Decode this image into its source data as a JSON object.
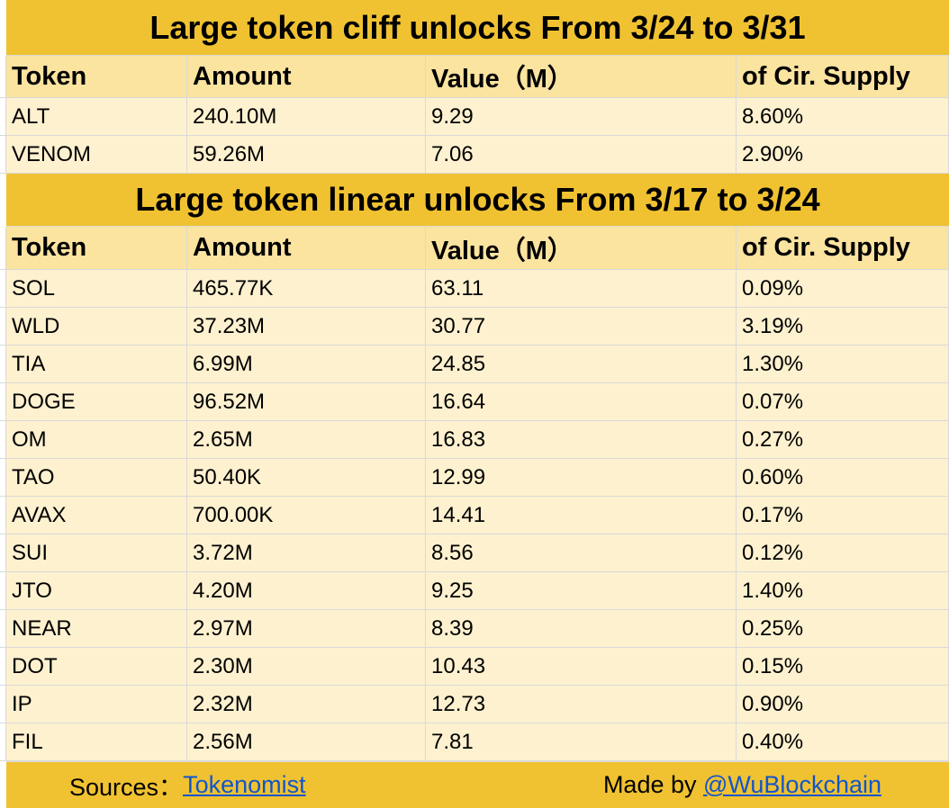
{
  "cliff": {
    "title": "Large token cliff unlocks From  3/24 to 3/31",
    "headers": [
      "Token",
      "Amount",
      "Value（M）",
      "of Cir. Supply"
    ],
    "rows": [
      [
        "ALT",
        "240.10M",
        "9.29",
        "8.60%"
      ],
      [
        "VENOM",
        "59.26M",
        "7.06",
        "2.90%"
      ]
    ]
  },
  "linear": {
    "title": "Large token linear unlocks From  3/17 to 3/24",
    "headers": [
      "Token",
      "Amount",
      "Value（M）",
      "of Cir. Supply"
    ],
    "rows": [
      [
        "SOL",
        "465.77K",
        "63.11",
        "0.09%"
      ],
      [
        "WLD",
        "37.23M",
        "30.77",
        "3.19%"
      ],
      [
        "TIA",
        "6.99M",
        "24.85",
        "1.30%"
      ],
      [
        "DOGE",
        "96.52M",
        "16.64",
        "0.07%"
      ],
      [
        "OM",
        "2.65M",
        "16.83",
        "0.27%"
      ],
      [
        "TAO",
        "50.40K",
        "12.99",
        "0.60%"
      ],
      [
        "AVAX",
        "700.00K",
        "14.41",
        "0.17%"
      ],
      [
        "SUI",
        "3.72M",
        "8.56",
        "0.12%"
      ],
      [
        "JTO",
        "4.20M",
        "9.25",
        "1.40%"
      ],
      [
        "NEAR",
        "2.97M",
        "8.39",
        "0.25%"
      ],
      [
        "DOT",
        "2.30M",
        "10.43",
        "0.15%"
      ],
      [
        "IP",
        "2.32M",
        "12.73",
        "0.90%"
      ],
      [
        "FIL",
        "2.56M",
        "7.81",
        "0.40%"
      ]
    ]
  },
  "footer": {
    "sources_label": "Sources：",
    "sources_link": "Tokenomist",
    "made_by_label": "Made by ",
    "made_by_link": "@WuBlockchain"
  },
  "colors": {
    "banner": "#f0c231",
    "header_cell": "#fbe3a0",
    "data_cell": "#fdf1cf",
    "link": "#1155cc"
  }
}
